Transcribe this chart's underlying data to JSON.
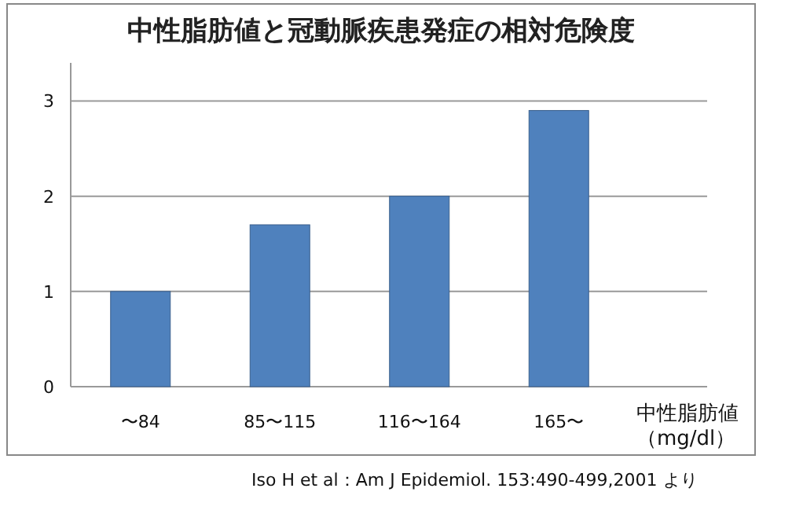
{
  "chart_data": {
    "type": "bar",
    "title": "中性脂肪値と冠動脈疾患発症の相対危険度",
    "categories": [
      "〜84",
      "85〜115",
      "116〜164",
      "165〜"
    ],
    "values": [
      1.0,
      1.7,
      2.0,
      2.9
    ],
    "color": "#4f81bd",
    "xlabel": "中性脂肪値（mg/dl）",
    "ylim": [
      0,
      3.4
    ],
    "yticks": [
      0,
      1,
      2,
      3
    ],
    "grid": "y",
    "annotations": [
      "Iso H et al：Am J Epidemiol. 153:490-499,2001 より"
    ]
  }
}
